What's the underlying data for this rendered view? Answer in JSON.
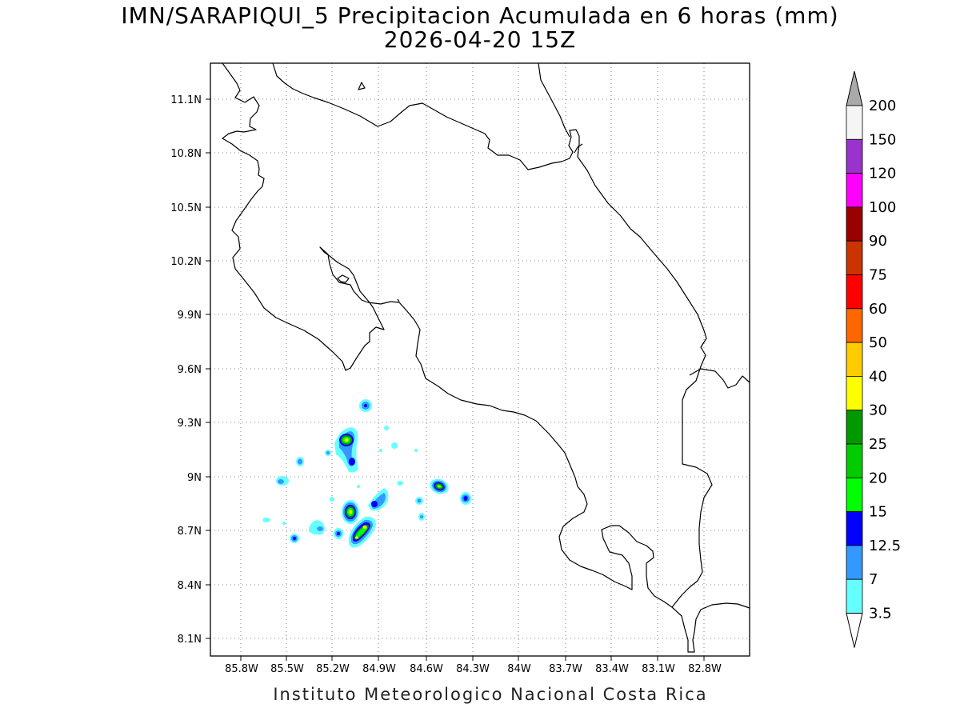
{
  "title": "IMN/SARAPIQUI_5 Precipitacion Acumulada en 6 horas (mm)",
  "subtitle": "2026-04-20 15Z",
  "footer": "Instituto Meteorologico Nacional Costa Rica",
  "map": {
    "lon_range": [
      -86.0,
      -83.0
    ],
    "lat_range": [
      8.0,
      11.25
    ],
    "x_ticks": [
      "85.8W",
      "85.5W",
      "85.2W",
      "84.9W",
      "84.6W",
      "84.3W",
      "84W",
      "83.7W",
      "83.4W",
      "83.1W",
      "82.8W"
    ],
    "y_ticks": [
      "11.1N",
      "10.8N",
      "10.5N",
      "10.2N",
      "9.9N",
      "9.6N",
      "9.3N",
      "9N",
      "8.7N",
      "8.4N",
      "8.1N"
    ],
    "grid": "dotted",
    "coastline_color": "#000000"
  },
  "colorbar": {
    "labels": [
      "200",
      "150",
      "120",
      "100",
      "90",
      "75",
      "60",
      "50",
      "40",
      "30",
      "25",
      "20",
      "15",
      "12.5",
      "7",
      "3.5"
    ],
    "colors": [
      "#f5f5f5",
      "#9933cc",
      "#ff00ff",
      "#990000",
      "#cc3300",
      "#ff0000",
      "#ff6600",
      "#ffcc00",
      "#ffff00",
      "#009900",
      "#00cc00",
      "#00ff00",
      "#0000ff",
      "#3399ff",
      "#66ffff",
      "#ffffff"
    ],
    "top_arrow_color": "#aaaaaa",
    "bottom_arrow_color": "#ffffff"
  },
  "precip_cells": [
    {
      "name": "cell-a",
      "level": 3
    },
    {
      "name": "cell-b",
      "level": 9
    },
    {
      "name": "cell-c",
      "level": 4
    },
    {
      "name": "cell-d",
      "level": 8
    },
    {
      "name": "cell-e",
      "level": 9
    },
    {
      "name": "cell-f",
      "level": 9
    },
    {
      "name": "cell-g",
      "level": 4
    },
    {
      "name": "cell-h",
      "level": 8
    },
    {
      "name": "cell-i",
      "level": 3
    },
    {
      "name": "cell-j",
      "level": 2
    }
  ]
}
